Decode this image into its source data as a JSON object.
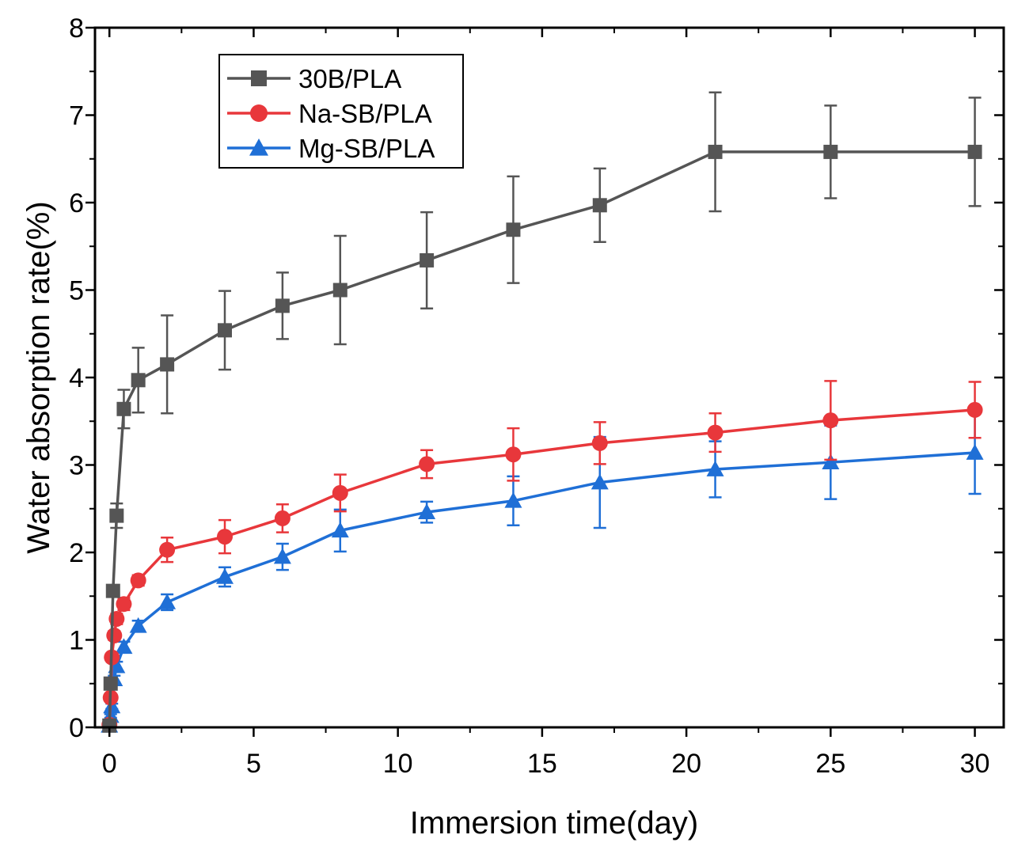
{
  "chart_data": {
    "type": "line",
    "title": "",
    "xlabel": "Immersion time(day)",
    "ylabel": "Water absorption rate(%)",
    "xlim": [
      -0.5,
      31
    ],
    "ylim": [
      0,
      8
    ],
    "xticks": [
      0,
      5,
      10,
      15,
      20,
      25,
      30
    ],
    "yticks": [
      0,
      1,
      2,
      3,
      4,
      5,
      6,
      7,
      8
    ],
    "xtick_labels": [
      "0",
      "5",
      "10",
      "15",
      "20",
      "25",
      "30"
    ],
    "ytick_labels": [
      "0",
      "1",
      "2",
      "3",
      "4",
      "5",
      "6",
      "7",
      "8"
    ],
    "legend_position": "top-left",
    "series": [
      {
        "name": "30B/PLA",
        "color": "#555555",
        "marker": "square",
        "points": [
          {
            "x": 0,
            "y": 0.02,
            "err": 0
          },
          {
            "x": 0.042,
            "y": 0.5,
            "err": 0.03
          },
          {
            "x": 0.125,
            "y": 1.56,
            "err": 0.05
          },
          {
            "x": 0.25,
            "y": 2.42,
            "err": 0.14
          },
          {
            "x": 0.5,
            "y": 3.64,
            "err": 0.22
          },
          {
            "x": 1,
            "y": 3.97,
            "err": 0.37
          },
          {
            "x": 2,
            "y": 4.15,
            "err": 0.56
          },
          {
            "x": 4,
            "y": 4.54,
            "err": 0.45
          },
          {
            "x": 6,
            "y": 4.82,
            "err": 0.38
          },
          {
            "x": 8,
            "y": 5.0,
            "err": 0.62
          },
          {
            "x": 11,
            "y": 5.34,
            "err": 0.55
          },
          {
            "x": 14,
            "y": 5.69,
            "err": 0.61
          },
          {
            "x": 17,
            "y": 5.97,
            "err": 0.42
          },
          {
            "x": 21,
            "y": 6.58,
            "err": 0.68
          },
          {
            "x": 25,
            "y": 6.58,
            "err": 0.53
          },
          {
            "x": 30,
            "y": 6.58,
            "err": 0.62
          }
        ]
      },
      {
        "name": "Na-SB/PLA",
        "color": "#e8373b",
        "marker": "circle",
        "points": [
          {
            "x": 0,
            "y": 0.03,
            "err": 0
          },
          {
            "x": 0.042,
            "y": 0.34,
            "err": 0.03
          },
          {
            "x": 0.083,
            "y": 0.8,
            "err": 0.04
          },
          {
            "x": 0.167,
            "y": 1.05,
            "err": 0.05
          },
          {
            "x": 0.25,
            "y": 1.24,
            "err": 0.06
          },
          {
            "x": 0.5,
            "y": 1.41,
            "err": 0.07
          },
          {
            "x": 1,
            "y": 1.68,
            "err": 0.06
          },
          {
            "x": 2,
            "y": 2.03,
            "err": 0.14
          },
          {
            "x": 4,
            "y": 2.18,
            "err": 0.19
          },
          {
            "x": 6,
            "y": 2.39,
            "err": 0.16
          },
          {
            "x": 8,
            "y": 2.68,
            "err": 0.21
          },
          {
            "x": 11,
            "y": 3.01,
            "err": 0.16
          },
          {
            "x": 14,
            "y": 3.12,
            "err": 0.3
          },
          {
            "x": 17,
            "y": 3.25,
            "err": 0.24
          },
          {
            "x": 21,
            "y": 3.37,
            "err": 0.22
          },
          {
            "x": 25,
            "y": 3.51,
            "err": 0.45
          },
          {
            "x": 30,
            "y": 3.63,
            "err": 0.32
          }
        ]
      },
      {
        "name": "Mg-SB/PLA",
        "color": "#1f6fd6",
        "marker": "triangle",
        "points": [
          {
            "x": 0,
            "y": 0.02,
            "err": 0
          },
          {
            "x": 0.042,
            "y": 0.13,
            "err": 0.02
          },
          {
            "x": 0.083,
            "y": 0.24,
            "err": 0.03
          },
          {
            "x": 0.167,
            "y": 0.55,
            "err": 0.04
          },
          {
            "x": 0.25,
            "y": 0.7,
            "err": 0.05
          },
          {
            "x": 0.5,
            "y": 0.92,
            "err": 0.06
          },
          {
            "x": 1,
            "y": 1.16,
            "err": 0.06
          },
          {
            "x": 2,
            "y": 1.43,
            "err": 0.09
          },
          {
            "x": 4,
            "y": 1.72,
            "err": 0.11
          },
          {
            "x": 6,
            "y": 1.95,
            "err": 0.15
          },
          {
            "x": 8,
            "y": 2.25,
            "err": 0.24
          },
          {
            "x": 11,
            "y": 2.46,
            "err": 0.12
          },
          {
            "x": 14,
            "y": 2.59,
            "err": 0.28
          },
          {
            "x": 17,
            "y": 2.8,
            "err": 0.52
          },
          {
            "x": 21,
            "y": 2.95,
            "err": 0.32
          },
          {
            "x": 25,
            "y": 3.03,
            "err": 0.42
          },
          {
            "x": 30,
            "y": 3.14,
            "err": 0.47
          }
        ]
      }
    ]
  }
}
